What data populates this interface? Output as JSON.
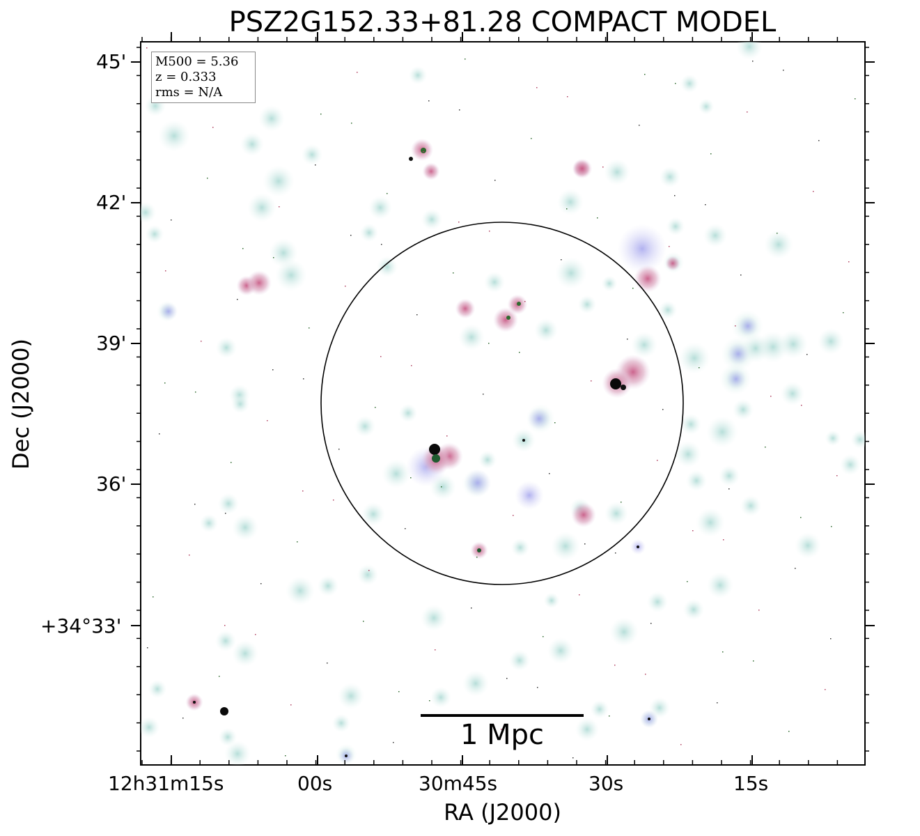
{
  "figure": {
    "title": "PSZ2G152.33+81.28 COMPACT MODEL",
    "xlabel": "RA (J2000)",
    "ylabel": "Dec (J2000)",
    "legend": {
      "lines": [
        "M500 = 5.36",
        "z = 0.333",
        "rms = N/A"
      ]
    },
    "x_ticks": [
      "12h31m15s",
      "00s",
      "30m45s",
      "30s",
      "15s"
    ],
    "y_ticks": [
      "45'",
      "42'",
      "39'",
      "36'",
      "+34°33'"
    ],
    "scalebar": {
      "label": "1 Mpc"
    },
    "colors": {
      "halo": "#cfe8e6",
      "blue_halo": "#c9c9f2",
      "pink_core": "#d06a8f",
      "green_core": "#3b7a3b",
      "circle": "#000000"
    }
  }
}
